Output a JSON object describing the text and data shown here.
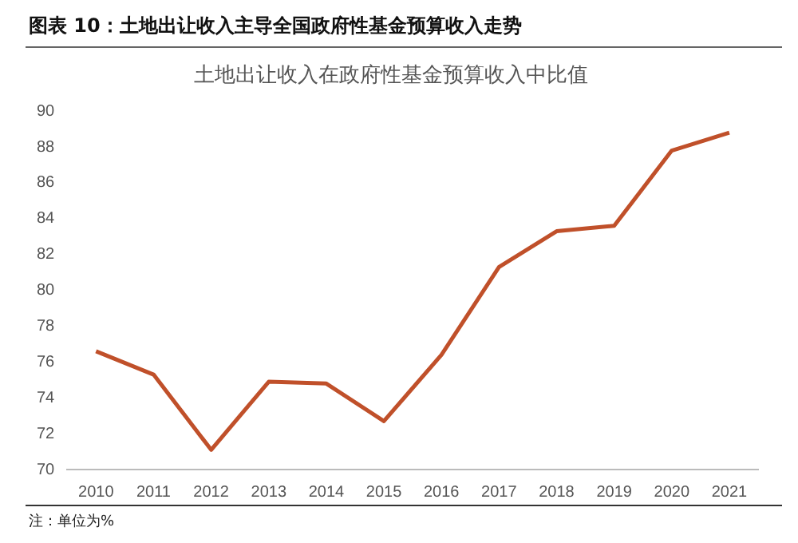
{
  "chart_data": {
    "type": "line",
    "title": "图表 10：土地出让收入主导全国政府性基金预算收入走势",
    "subtitle": "土地出让收入在政府性基金预算收入中比值",
    "categories": [
      "2010",
      "2011",
      "2012",
      "2013",
      "2014",
      "2015",
      "2016",
      "2017",
      "2018",
      "2019",
      "2020",
      "2021"
    ],
    "series": [
      {
        "color": "#c0502a",
        "values": [
          76.6,
          75.3,
          71.1,
          74.9,
          74.8,
          72.7,
          76.4,
          81.3,
          83.3,
          83.6,
          87.8,
          88.8
        ]
      }
    ],
    "ylim": [
      70,
      90
    ],
    "yticks": [
      70,
      72,
      74,
      76,
      78,
      80,
      82,
      84,
      86,
      88,
      90
    ],
    "grid": false,
    "legend": false,
    "marker": "none",
    "line_style": "solid",
    "annotations": [
      "注：单位为%"
    ]
  }
}
